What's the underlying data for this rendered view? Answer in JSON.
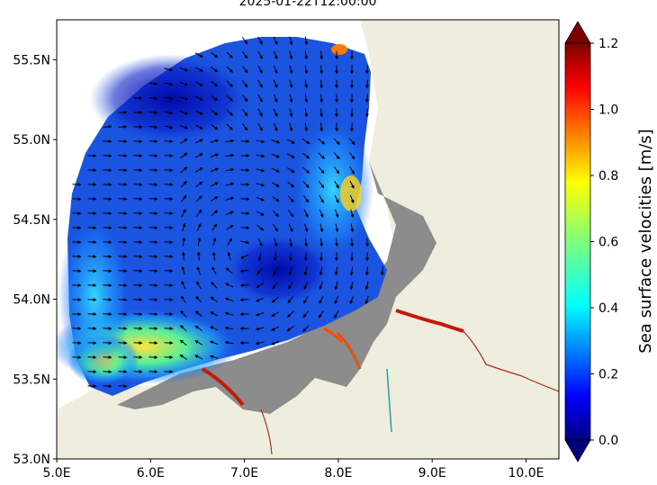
{
  "title": "2025-01-22T12:00:00",
  "map": {
    "lon_range": [
      5.0,
      10.35
    ],
    "lat_range": [
      53.0,
      55.75
    ],
    "x_ticks": [
      "5.0E",
      "6.0E",
      "7.0E",
      "8.0E",
      "9.0E",
      "10.0E"
    ],
    "y_ticks": [
      "53.0N",
      "53.5N",
      "54.0N",
      "54.5N",
      "55.0N",
      "55.5N"
    ],
    "land_color": "#efeddd",
    "wetland_color": "#8c8c8c",
    "ocean_base_color": "#1b54e0"
  },
  "colorbar": {
    "label": "Sea surface velocities [m/s]",
    "ticks": [
      "0.0",
      "0.2",
      "0.4",
      "0.6",
      "0.8",
      "1.0",
      "1.2"
    ],
    "min": 0.0,
    "max": 1.2,
    "colormap": "jet",
    "extend": "both",
    "under_color": "#00007f",
    "over_color": "#7f0000"
  }
}
